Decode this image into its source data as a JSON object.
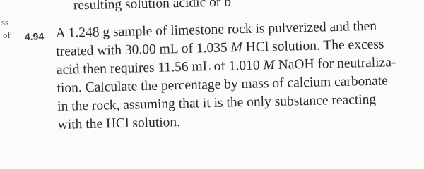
{
  "header": {
    "partial_line": "resulting solution acidic or b"
  },
  "margin": [
    "ss",
    "of"
  ],
  "problem": {
    "number": "4.94",
    "lines": [
      [
        "A 1.248 g sample of limestone rock is pulverized and then"
      ],
      [
        "treated with 30.00 mL of 1.035 ",
        "M",
        " HCl solution. The excess"
      ],
      [
        "acid then requires 11.56 mL of 1.010 ",
        "M",
        " NaOH for neutraliza-"
      ],
      [
        "tion. Calculate the percentage by mass of calcium carbonate"
      ],
      [
        "in the rock, assuming that it is the only substance reacting"
      ],
      [
        "with the HCl solution."
      ]
    ]
  }
}
